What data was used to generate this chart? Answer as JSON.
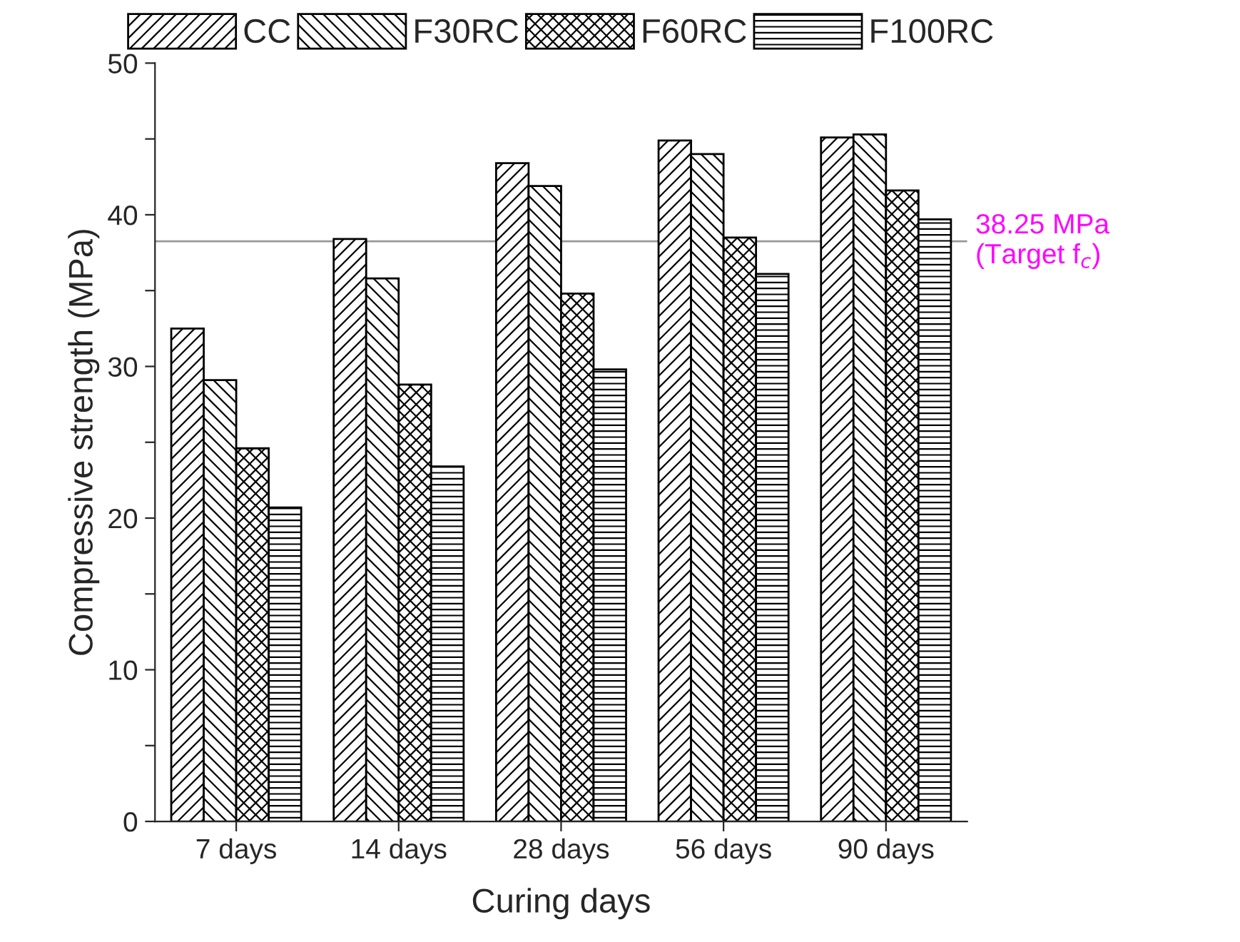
{
  "chart_data": {
    "type": "bar",
    "xlabel": "Curing days",
    "ylabel": "Compressive strength (MPa)",
    "categories": [
      "7 days",
      "14 days",
      "28 days",
      "56 days",
      "90 days"
    ],
    "series": [
      {
        "name": "CC",
        "color": "#000000",
        "values": [
          32.5,
          38.4,
          43.4,
          44.9,
          45.1
        ]
      },
      {
        "name": "F30RC",
        "color": "#000000",
        "values": [
          29.1,
          35.8,
          41.9,
          44.0,
          45.3
        ]
      },
      {
        "name": "F60RC",
        "color": "#000000",
        "values": [
          24.6,
          28.8,
          34.8,
          38.5,
          41.6
        ]
      },
      {
        "name": "F100RC",
        "color": "#000000",
        "values": [
          20.7,
          23.4,
          29.8,
          36.1,
          39.7
        ]
      }
    ],
    "ylim": [
      0,
      50
    ],
    "yticks": [
      0,
      {
        "value": 5,
        "label": null
      },
      10,
      {
        "value": 15,
        "label": null
      },
      20,
      {
        "value": 25,
        "label": null
      },
      30,
      {
        "value": 35,
        "label": null
      },
      40,
      {
        "value": 45,
        "label": null
      },
      50
    ],
    "ref_lines": [
      {
        "axis": "y",
        "value": 38.25,
        "label": "38.25 MPa\n(Target f$_{c}$)",
        "color": "#999999"
      }
    ],
    "legend": "top",
    "grid": false
  }
}
